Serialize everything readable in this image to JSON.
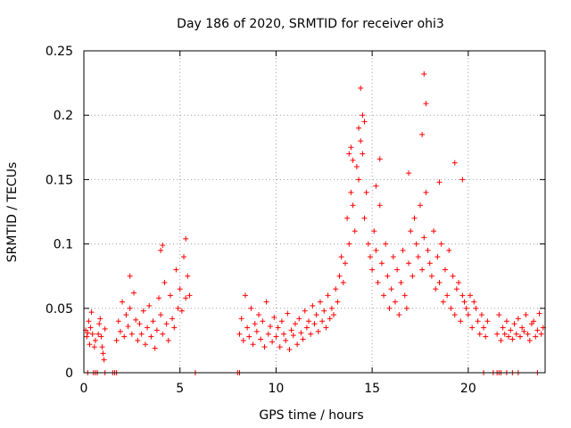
{
  "chart_data": {
    "type": "scatter",
    "title": "Day 186 of 2020, SRMTID for receiver ohi3",
    "xlabel": "GPS time / hours",
    "ylabel": "SRMTID / TECUs",
    "xlim": [
      0,
      24
    ],
    "ylim": [
      0,
      0.25
    ],
    "xticks": [
      0,
      5,
      10,
      15,
      20
    ],
    "yticks": [
      0,
      0.05,
      0.1,
      0.15,
      0.2,
      0.25
    ],
    "xtick_labels": [
      "0",
      "5",
      "10",
      "15",
      "20"
    ],
    "ytick_labels": [
      "0",
      "0.05",
      "0.1",
      "0.15",
      "0.2",
      "0.25"
    ],
    "grid": true,
    "marker": "+",
    "color": "#ff0000",
    "series": [
      {
        "name": "SRMTID",
        "x": [
          0.1,
          0.15,
          0.2,
          0.25,
          0.3,
          0.35,
          0.4,
          0.45,
          0.55,
          0.6,
          0.75,
          0.8,
          0.85,
          0.9,
          0.95,
          1.0,
          1.05,
          1.1,
          1.7,
          1.8,
          1.9,
          2.0,
          2.1,
          2.2,
          2.3,
          2.4,
          2.5,
          2.6,
          2.7,
          2.8,
          2.9,
          3.0,
          3.1,
          3.2,
          3.3,
          3.4,
          3.5,
          3.6,
          3.7,
          3.8,
          3.9,
          4.0,
          4.1,
          4.2,
          4.3,
          4.4,
          4.5,
          4.6,
          4.7,
          4.8,
          4.9,
          5.0,
          5.1,
          5.2,
          5.3,
          5.4,
          5.5,
          8.1,
          8.2,
          8.3,
          8.4,
          8.5,
          8.6,
          8.7,
          8.8,
          8.9,
          9.0,
          9.1,
          9.2,
          9.3,
          9.4,
          9.5,
          9.6,
          9.7,
          9.8,
          9.9,
          10.0,
          10.1,
          10.2,
          10.3,
          10.4,
          10.5,
          10.6,
          10.7,
          10.8,
          10.9,
          11.0,
          11.1,
          11.2,
          11.3,
          11.4,
          11.5,
          11.6,
          11.7,
          11.8,
          11.9,
          12.0,
          12.1,
          12.2,
          12.3,
          12.4,
          12.5,
          12.6,
          12.7,
          12.8,
          12.9,
          13.0,
          13.1,
          13.2,
          13.3,
          13.4,
          13.5,
          13.6,
          13.7,
          13.8,
          13.9,
          14.0,
          14.1,
          14.2,
          14.3,
          14.4,
          14.5,
          14.6,
          14.7,
          14.8,
          14.9,
          15.0,
          15.1,
          15.2,
          15.3,
          15.4,
          15.5,
          15.6,
          15.7,
          15.8,
          15.9,
          16.0,
          16.1,
          16.2,
          16.3,
          16.4,
          16.5,
          16.6,
          16.7,
          16.8,
          16.9,
          17.0,
          17.1,
          17.2,
          17.3,
          17.4,
          17.5,
          17.6,
          17.7,
          17.8,
          17.9,
          18.0,
          18.1,
          18.2,
          18.3,
          18.4,
          18.5,
          18.6,
          18.7,
          18.8,
          18.9,
          19.0,
          19.1,
          19.2,
          19.3,
          19.4,
          19.5,
          19.6,
          19.7,
          19.8,
          19.9,
          20.0,
          20.1,
          20.2,
          20.3,
          20.4,
          20.5,
          20.6,
          20.7,
          20.8,
          20.9,
          21.0,
          21.5,
          21.6,
          21.7,
          21.8,
          21.9,
          22.0,
          22.1,
          22.2,
          22.3,
          22.4,
          22.5,
          22.6,
          22.7,
          22.8,
          22.9,
          23.0,
          23.1,
          23.2,
          23.3,
          23.4,
          23.5,
          23.6,
          23.7,
          23.8,
          23.9,
          14.4,
          14.5,
          17.7,
          17.8,
          14.3,
          13.9,
          14.0,
          17.6,
          19.3,
          19.7,
          15.4,
          16.9,
          18.5,
          5.3,
          4.1,
          4.0,
          2.4,
          13.8,
          14.6,
          15.2,
          0.2,
          0.5,
          0.6,
          0.7,
          1.1,
          1.5,
          1.6,
          1.7,
          5.8,
          8.0,
          8.1,
          20.8,
          21.3,
          21.5,
          21.6,
          21.7,
          22.0,
          22.3,
          22.6,
          23.6
        ],
        "y": [
          0.033,
          0.028,
          0.031,
          0.04,
          0.022,
          0.035,
          0.047,
          0.03,
          0.02,
          0.025,
          0.03,
          0.038,
          0.042,
          0.028,
          0.02,
          0.015,
          0.01,
          0.034,
          0.025,
          0.04,
          0.032,
          0.055,
          0.028,
          0.045,
          0.036,
          0.05,
          0.03,
          0.062,
          0.041,
          0.025,
          0.038,
          0.03,
          0.048,
          0.022,
          0.035,
          0.052,
          0.028,
          0.04,
          0.019,
          0.033,
          0.058,
          0.045,
          0.03,
          0.07,
          0.038,
          0.025,
          0.06,
          0.042,
          0.035,
          0.08,
          0.05,
          0.065,
          0.048,
          0.09,
          0.058,
          0.075,
          0.06,
          0.03,
          0.042,
          0.025,
          0.06,
          0.035,
          0.028,
          0.05,
          0.022,
          0.038,
          0.032,
          0.045,
          0.026,
          0.04,
          0.02,
          0.055,
          0.03,
          0.036,
          0.024,
          0.043,
          0.028,
          0.035,
          0.02,
          0.04,
          0.03,
          0.025,
          0.046,
          0.018,
          0.033,
          0.029,
          0.038,
          0.022,
          0.042,
          0.031,
          0.026,
          0.048,
          0.035,
          0.04,
          0.03,
          0.052,
          0.038,
          0.045,
          0.032,
          0.055,
          0.04,
          0.048,
          0.035,
          0.06,
          0.042,
          0.05,
          0.045,
          0.065,
          0.055,
          0.075,
          0.09,
          0.07,
          0.085,
          0.12,
          0.1,
          0.14,
          0.13,
          0.11,
          0.16,
          0.15,
          0.18,
          0.17,
          0.12,
          0.14,
          0.1,
          0.09,
          0.08,
          0.11,
          0.095,
          0.07,
          0.13,
          0.085,
          0.06,
          0.1,
          0.075,
          0.05,
          0.065,
          0.09,
          0.055,
          0.08,
          0.045,
          0.07,
          0.095,
          0.06,
          0.05,
          0.085,
          0.11,
          0.075,
          0.12,
          0.1,
          0.09,
          0.13,
          0.08,
          0.105,
          0.14,
          0.095,
          0.085,
          0.075,
          0.11,
          0.065,
          0.09,
          0.07,
          0.1,
          0.055,
          0.08,
          0.06,
          0.095,
          0.05,
          0.075,
          0.045,
          0.065,
          0.07,
          0.04,
          0.06,
          0.055,
          0.05,
          0.045,
          0.06,
          0.035,
          0.055,
          0.05,
          0.04,
          0.03,
          0.045,
          0.035,
          0.028,
          0.04,
          0.03,
          0.045,
          0.025,
          0.035,
          0.03,
          0.04,
          0.028,
          0.033,
          0.026,
          0.038,
          0.03,
          0.042,
          0.028,
          0.035,
          0.032,
          0.045,
          0.03,
          0.025,
          0.038,
          0.04,
          0.028,
          0.033,
          0.046,
          0.03,
          0.035,
          0.221,
          0.2,
          0.232,
          0.209,
          0.19,
          0.175,
          0.165,
          0.185,
          0.163,
          0.15,
          0.166,
          0.155,
          0.148,
          0.104,
          0.099,
          0.095,
          0.075,
          0.17,
          0.195,
          0.145,
          0,
          0,
          0,
          0,
          0,
          0,
          0,
          0,
          0,
          0,
          0,
          0,
          0,
          0,
          0,
          0,
          0,
          0,
          0,
          0
        ]
      }
    ]
  }
}
